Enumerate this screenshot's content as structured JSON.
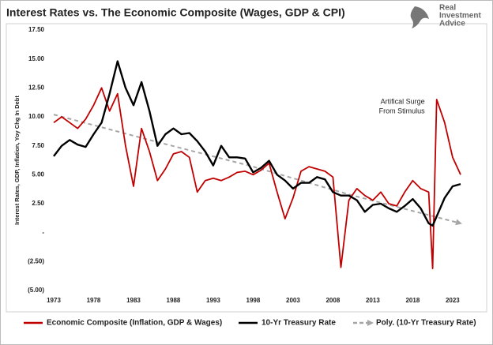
{
  "chart_data": {
    "type": "line",
    "title": "Interest Rates vs. The Economic Composite (Wages, GDP & CPI)",
    "y_label": "Interest Rates, GDP, Inflation, Yoy Chg In Debt",
    "logo": [
      "Real",
      "Investment",
      "Advice"
    ],
    "annotation": {
      "lines": [
        "Artifical Surge",
        "From Stimulus"
      ],
      "x": 2020.5,
      "y": 11.5
    },
    "x": [
      1973,
      1974,
      1975,
      1976,
      1977,
      1978,
      1979,
      1980,
      1981,
      1982,
      1983,
      1984,
      1985,
      1986,
      1987,
      1988,
      1989,
      1990,
      1991,
      1992,
      1993,
      1994,
      1995,
      1996,
      1997,
      1998,
      1999,
      2000,
      2001,
      2002,
      2003,
      2004,
      2005,
      2006,
      2007,
      2008,
      2009,
      2010,
      2011,
      2012,
      2013,
      2014,
      2015,
      2016,
      2017,
      2018,
      2019,
      2020,
      2020.5,
      2021,
      2022,
      2023,
      2024
    ],
    "series": [
      {
        "name": "Economic Composite (Inflation, GDP & Wages)",
        "color": "#c00000",
        "values": [
          9.5,
          10.0,
          9.5,
          9.0,
          9.8,
          11.0,
          12.5,
          10.5,
          12.0,
          7.5,
          4.0,
          9.0,
          7.0,
          4.5,
          5.5,
          6.8,
          7.0,
          6.5,
          3.5,
          4.5,
          4.7,
          4.5,
          4.8,
          5.2,
          5.3,
          5.0,
          5.4,
          6.0,
          3.5,
          1.2,
          3.0,
          5.3,
          5.7,
          5.5,
          5.3,
          4.8,
          -3.0,
          2.8,
          3.8,
          3.2,
          2.8,
          3.5,
          2.5,
          2.3,
          3.5,
          4.5,
          3.8,
          3.5,
          -3.1,
          11.5,
          9.5,
          6.5,
          5.0
        ]
      },
      {
        "name": "10-Yr Treasury Rate",
        "color": "#000000",
        "values": [
          6.6,
          7.5,
          8.0,
          7.6,
          7.4,
          8.5,
          9.5,
          12.0,
          14.8,
          12.5,
          11.0,
          13.0,
          10.5,
          7.5,
          8.5,
          9.0,
          8.5,
          8.6,
          7.9,
          7.0,
          5.8,
          7.5,
          6.5,
          6.5,
          6.4,
          5.2,
          5.6,
          6.2,
          5.0,
          4.5,
          3.8,
          4.3,
          4.3,
          4.8,
          4.6,
          3.5,
          3.2,
          3.2,
          2.8,
          1.8,
          2.4,
          2.5,
          2.1,
          1.8,
          2.3,
          2.9,
          2.1,
          0.8,
          0.6,
          1.4,
          3.0,
          4.0,
          4.2
        ]
      },
      {
        "name": "Poly. (10-Yr Treasury Rate)",
        "color": "#a6a6a6",
        "dashed": true,
        "x": [
          1973,
          1985,
          1998,
          2010,
          2024
        ],
        "values": [
          10.2,
          8.0,
          5.7,
          3.3,
          0.8
        ]
      }
    ],
    "xlim": [
      1973,
      2024.5
    ],
    "xticks": [
      1973,
      1978,
      1983,
      1988,
      1993,
      1998,
      2003,
      2008,
      2013,
      2018,
      2023
    ],
    "ylim": [
      -5,
      17.5
    ],
    "yticks": [
      {
        "value": -5,
        "label": "(5.00)"
      },
      {
        "value": -2.5,
        "label": "(2.50)"
      },
      {
        "value": 0,
        "label": "-"
      },
      {
        "value": 2.5,
        "label": "2.50"
      },
      {
        "value": 5,
        "label": "5.00"
      },
      {
        "value": 7.5,
        "label": "7.50"
      },
      {
        "value": 10,
        "label": "10.00"
      },
      {
        "value": 12.5,
        "label": "12.50"
      },
      {
        "value": 15,
        "label": "15.00"
      },
      {
        "value": 17.5,
        "label": "17.50"
      }
    ],
    "grid": false
  }
}
